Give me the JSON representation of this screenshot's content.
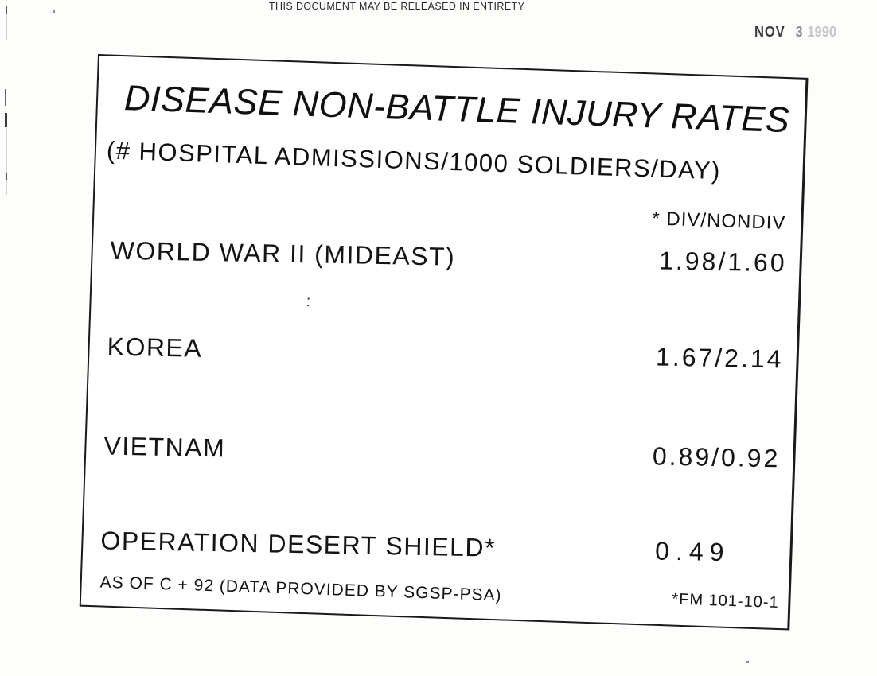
{
  "page": {
    "release_notice": "THIS DOCUMENT MAY BE RELEASED IN ENTIRETY",
    "date_stamp": {
      "month": "NOV",
      "day": "3",
      "year": "1990"
    }
  },
  "slide": {
    "title": "DISEASE NON-BATTLE INJURY RATES",
    "subtitle": "(#  HOSPITAL ADMISSIONS/1000  SOLDIERS/DAY)",
    "column_header": "* DIV/NONDIV",
    "rows": [
      {
        "label": "WORLD WAR II (MIDEAST)",
        "value": "1.98/1.60"
      },
      {
        "label": "KOREA",
        "value": "1.67/2.14"
      },
      {
        "label": "VIETNAM",
        "value": "0.89/0.92"
      },
      {
        "label": "OPERATION DESERT SHIELD*",
        "value": "0.49"
      }
    ],
    "stray_mark": ":",
    "footnote": "AS OF C + 92 (DATA PROVIDED BY SGSP-PSA)",
    "reference": "*FM 101-10-1"
  }
}
